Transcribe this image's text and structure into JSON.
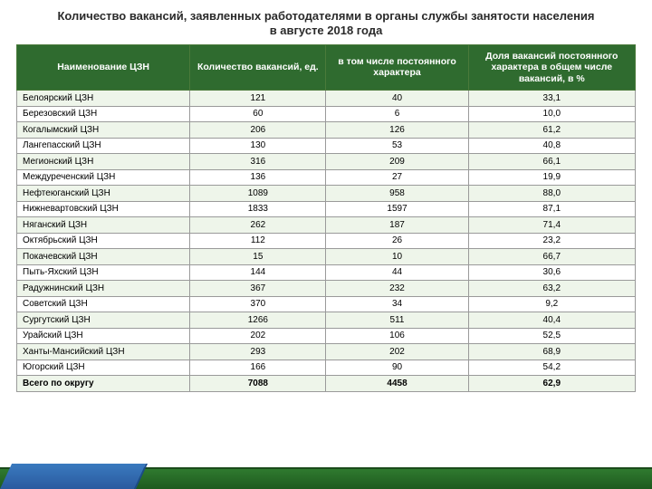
{
  "title": "Количество вакансий, заявленных работодателями в органы службы занятости населения в августе 2018 года",
  "title_fontsize": 13,
  "title_color": "#2a2a2a",
  "table": {
    "type": "table",
    "header_bg": "#2f6b2f",
    "header_color": "#ffffff",
    "header_fontsize": 10.5,
    "body_fontsize": 10,
    "row_bg_odd": "#eef5ea",
    "row_bg_even": "#ffffff",
    "border_color": "#9a9a9a",
    "col_widths": [
      "28%",
      "22%",
      "23%",
      "27%"
    ],
    "columns": [
      "Наименование ЦЗН",
      "Количество вакансий, ед.",
      "в том числе постоянного характера",
      "Доля вакансий постоянного характера в общем числе вакансий, в %"
    ],
    "rows": [
      [
        "Белоярский ЦЗН",
        "121",
        "40",
        "33,1"
      ],
      [
        "Березовский ЦЗН",
        "60",
        "6",
        "10,0"
      ],
      [
        "Когалымский  ЦЗН",
        "206",
        "126",
        "61,2"
      ],
      [
        "Лангепасский ЦЗН",
        "130",
        "53",
        "40,8"
      ],
      [
        "Мегионский ЦЗН",
        "316",
        "209",
        "66,1"
      ],
      [
        "Междуреченский ЦЗН",
        "136",
        "27",
        "19,9"
      ],
      [
        "Нефтеюганский ЦЗН",
        "1089",
        "958",
        "88,0"
      ],
      [
        "Нижневартовский ЦЗН",
        "1833",
        "1597",
        "87,1"
      ],
      [
        "Няганский ЦЗН",
        "262",
        "187",
        "71,4"
      ],
      [
        "Октябрьский ЦЗН",
        "112",
        "26",
        "23,2"
      ],
      [
        "Покачевский ЦЗН",
        "15",
        "10",
        "66,7"
      ],
      [
        "Пыть-Яхский ЦЗН",
        "144",
        "44",
        "30,6"
      ],
      [
        "Радужнинский ЦЗН",
        "367",
        "232",
        "63,2"
      ],
      [
        "Советский ЦЗН",
        "370",
        "34",
        "9,2"
      ],
      [
        "Сургутский ЦЗН",
        "1266",
        "511",
        "40,4"
      ],
      [
        "Урайский ЦЗН",
        "202",
        "106",
        "52,5"
      ],
      [
        "Ханты-Мансийский ЦЗН",
        "293",
        "202",
        "68,9"
      ],
      [
        "Югорский ЦЗН",
        "166",
        "90",
        "54,2"
      ]
    ],
    "total_row": [
      "Всего по округу",
      "7088",
      "4458",
      "62,9"
    ]
  },
  "footer": {
    "green": "#2f7a2f",
    "blue": "#3a7abf"
  }
}
